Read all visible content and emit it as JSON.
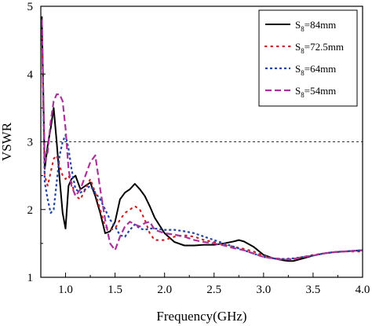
{
  "chart_data": {
    "type": "line",
    "xlabel": "Frequency(GHz)",
    "ylabel": "VSWR",
    "xlim": [
      0.75,
      4.0
    ],
    "ylim": [
      1,
      5
    ],
    "x_ticks": [
      "1.0",
      "1.5",
      "2.0",
      "2.5",
      "3.0",
      "3.5",
      "4.0"
    ],
    "x_tick_values": [
      1.0,
      1.5,
      2.0,
      2.5,
      3.0,
      3.5,
      4.0
    ],
    "y_ticks": [
      "1",
      "2",
      "3",
      "4",
      "5"
    ],
    "y_tick_values": [
      1,
      2,
      3,
      4,
      5
    ],
    "grid": false,
    "legend_position": "top-right",
    "reference_line": {
      "y": 3,
      "style": "dashed",
      "color": "#333333"
    },
    "series": [
      {
        "name_prefix": "S",
        "name_sub": "8",
        "name_suffix": "=84mm",
        "color": "#000000",
        "dash": "solid",
        "x": [
          0.76,
          0.79,
          0.82,
          0.85,
          0.88,
          0.91,
          0.94,
          0.97,
          1.0,
          1.03,
          1.06,
          1.1,
          1.15,
          1.2,
          1.25,
          1.3,
          1.35,
          1.4,
          1.45,
          1.5,
          1.55,
          1.6,
          1.65,
          1.7,
          1.75,
          1.8,
          1.85,
          1.9,
          2.0,
          2.1,
          2.2,
          2.3,
          2.4,
          2.5,
          2.6,
          2.7,
          2.75,
          2.8,
          2.9,
          3.0,
          3.1,
          3.2,
          3.25,
          3.3,
          3.4,
          3.5,
          3.6,
          3.7,
          3.8,
          3.9,
          4.0
        ],
        "y": [
          4.85,
          2.6,
          2.95,
          3.2,
          3.5,
          3.0,
          2.45,
          1.95,
          1.72,
          2.35,
          2.45,
          2.5,
          2.3,
          2.35,
          2.4,
          2.2,
          1.95,
          1.65,
          1.68,
          1.82,
          2.15,
          2.25,
          2.3,
          2.38,
          2.3,
          2.2,
          2.05,
          1.88,
          1.65,
          1.52,
          1.47,
          1.47,
          1.48,
          1.48,
          1.5,
          1.53,
          1.55,
          1.53,
          1.45,
          1.33,
          1.28,
          1.25,
          1.24,
          1.24,
          1.28,
          1.32,
          1.35,
          1.37,
          1.38,
          1.39,
          1.4
        ]
      },
      {
        "name_prefix": "S",
        "name_sub": "8",
        "name_suffix": "=72.5mm",
        "color": "#cc2222",
        "dash": "dotted",
        "x": [
          0.76,
          0.79,
          0.82,
          0.85,
          0.88,
          0.91,
          0.94,
          0.97,
          1.0,
          1.03,
          1.06,
          1.1,
          1.15,
          1.2,
          1.25,
          1.3,
          1.35,
          1.4,
          1.45,
          1.5,
          1.55,
          1.6,
          1.65,
          1.7,
          1.75,
          1.8,
          1.85,
          1.9,
          2.0,
          2.1,
          2.2,
          2.3,
          2.4,
          2.5,
          2.6,
          2.7,
          2.8,
          2.9,
          3.0,
          3.1,
          3.2,
          3.3,
          3.4,
          3.5,
          3.6,
          3.7,
          3.8,
          3.9,
          4.0
        ],
        "y": [
          4.8,
          2.5,
          2.35,
          2.55,
          2.75,
          2.8,
          2.65,
          2.5,
          2.45,
          2.5,
          2.4,
          2.2,
          2.15,
          2.3,
          2.45,
          2.25,
          2.0,
          1.75,
          1.7,
          1.72,
          1.85,
          1.95,
          2.0,
          2.05,
          2.0,
          1.85,
          1.65,
          1.55,
          1.55,
          1.6,
          1.62,
          1.6,
          1.55,
          1.52,
          1.48,
          1.45,
          1.42,
          1.38,
          1.32,
          1.28,
          1.27,
          1.27,
          1.3,
          1.33,
          1.35,
          1.37,
          1.38,
          1.38,
          1.38
        ]
      },
      {
        "name_prefix": "S",
        "name_sub": "8",
        "name_suffix": "=64mm",
        "color": "#2244aa",
        "dash": "short-dash",
        "x": [
          0.76,
          0.79,
          0.82,
          0.85,
          0.88,
          0.91,
          0.94,
          0.97,
          1.0,
          1.03,
          1.06,
          1.1,
          1.15,
          1.2,
          1.25,
          1.3,
          1.35,
          1.4,
          1.45,
          1.5,
          1.55,
          1.6,
          1.65,
          1.7,
          1.75,
          1.8,
          1.85,
          1.9,
          2.0,
          2.1,
          2.2,
          2.3,
          2.4,
          2.5,
          2.6,
          2.7,
          2.8,
          2.9,
          3.0,
          3.1,
          3.2,
          3.3,
          3.4,
          3.5,
          3.6,
          3.7,
          3.8,
          3.9,
          4.0
        ],
        "y": [
          4.8,
          2.4,
          2.15,
          1.95,
          2.0,
          2.4,
          2.8,
          3.0,
          3.1,
          2.9,
          2.6,
          2.3,
          2.25,
          2.3,
          2.35,
          2.25,
          2.15,
          2.0,
          1.85,
          1.75,
          1.62,
          1.6,
          1.7,
          1.78,
          1.72,
          1.7,
          1.72,
          1.72,
          1.7,
          1.7,
          1.68,
          1.65,
          1.6,
          1.55,
          1.5,
          1.45,
          1.4,
          1.35,
          1.3,
          1.28,
          1.27,
          1.28,
          1.3,
          1.32,
          1.35,
          1.37,
          1.38,
          1.39,
          1.4
        ]
      },
      {
        "name_prefix": "S",
        "name_sub": "8",
        "name_suffix": "=54mm",
        "color": "#aa3399",
        "dash": "long-dash",
        "x": [
          0.76,
          0.79,
          0.82,
          0.85,
          0.88,
          0.91,
          0.94,
          0.97,
          1.0,
          1.03,
          1.06,
          1.1,
          1.15,
          1.2,
          1.25,
          1.3,
          1.35,
          1.4,
          1.45,
          1.5,
          1.55,
          1.6,
          1.65,
          1.7,
          1.75,
          1.8,
          1.85,
          1.9,
          2.0,
          2.1,
          2.2,
          2.3,
          2.4,
          2.5,
          2.6,
          2.7,
          2.8,
          2.9,
          3.0,
          3.1,
          3.2,
          3.3,
          3.4,
          3.5,
          3.6,
          3.7,
          3.8,
          3.9,
          4.0
        ],
        "y": [
          4.8,
          2.7,
          2.85,
          3.3,
          3.6,
          3.7,
          3.7,
          3.6,
          3.2,
          2.6,
          2.35,
          2.2,
          2.3,
          2.5,
          2.7,
          2.8,
          2.3,
          1.85,
          1.5,
          1.4,
          1.6,
          1.75,
          1.82,
          1.78,
          1.75,
          1.8,
          1.82,
          1.7,
          1.65,
          1.63,
          1.6,
          1.55,
          1.52,
          1.5,
          1.47,
          1.43,
          1.4,
          1.35,
          1.3,
          1.28,
          1.26,
          1.27,
          1.3,
          1.32,
          1.35,
          1.37,
          1.38,
          1.39,
          1.4
        ]
      }
    ]
  }
}
